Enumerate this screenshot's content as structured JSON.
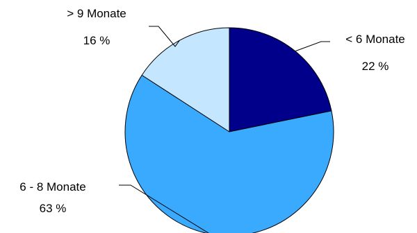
{
  "chart_data": {
    "type": "pie",
    "start_angle_deg": 0,
    "direction": "clockwise",
    "slices": [
      {
        "label": "< 6 Monate",
        "value": 22,
        "value_label": "22 %",
        "color": "#00008B"
      },
      {
        "label": "6 - 8 Monate",
        "value": 63,
        "value_label": "63 %",
        "color": "#3AAAFF"
      },
      {
        "label": "> 9 Monate",
        "value": 16,
        "value_label": "16 %",
        "color": "#C4E6FF"
      }
    ],
    "legend": "none"
  }
}
